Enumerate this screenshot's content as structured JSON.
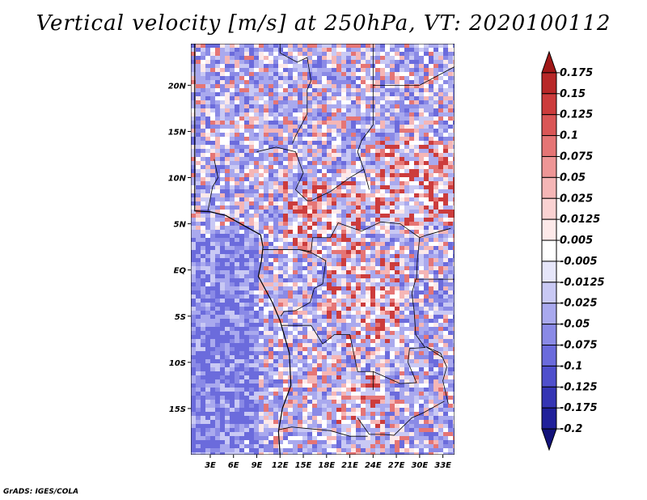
{
  "chart_data": {
    "type": "heatmap",
    "title": "Vertical velocity [m/s] at 250hPa, VT: 2020100112",
    "xlabel": "",
    "ylabel": "",
    "x_tick_labels": [
      "3E",
      "6E",
      "9E",
      "12E",
      "15E",
      "18E",
      "21E",
      "24E",
      "27E",
      "30E",
      "33E"
    ],
    "x_ticks": [
      3,
      6,
      9,
      12,
      15,
      18,
      21,
      24,
      27,
      30,
      33
    ],
    "y_tick_labels": [
      "20N",
      "15N",
      "10N",
      "5N",
      "EQ",
      "5S",
      "10S",
      "15S"
    ],
    "y_ticks": [
      20,
      15,
      10,
      5,
      0,
      -5,
      -10,
      -15
    ],
    "xlim": [
      0.5,
      34.5
    ],
    "ylim": [
      -20,
      24.5
    ],
    "colorbar": {
      "levels": [
        "0.175",
        "0.15",
        "0.125",
        "0.1",
        "0.075",
        "0.05",
        "0.025",
        "0.0125",
        "0.005",
        "-0.005",
        "-0.0125",
        "-0.025",
        "-0.05",
        "-0.075",
        "-0.1",
        "-0.125",
        "-0.175",
        "-0.2"
      ],
      "colors": [
        "#a01818",
        "#b82828",
        "#cc3c3c",
        "#da5656",
        "#e57575",
        "#ee9696",
        "#f5b6b6",
        "#fad2d2",
        "#fde9e9",
        "#ffffff",
        "#e6e6fa",
        "#c9c9f4",
        "#a9a9ee",
        "#8a8ae6",
        "#6b6bdc",
        "#4f4fcc",
        "#3535b4",
        "#20209a",
        "#12127a"
      ]
    }
  },
  "footer": "GrADS: IGES/COLA"
}
